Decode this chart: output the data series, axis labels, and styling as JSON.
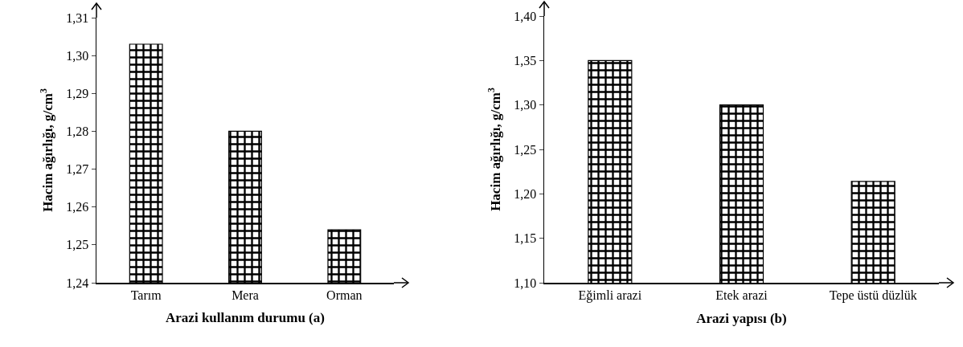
{
  "chart_data": [
    {
      "type": "bar",
      "categories": [
        "Tarım",
        "Mera",
        "Orman"
      ],
      "values": [
        1.303,
        1.28,
        1.254
      ],
      "color": "#000000",
      "xlabel": "Arazi kullanım durumu (a)",
      "ylabel": "Hacim ağırlığı, g/cm$^{3}$",
      "ylim": [
        1.24,
        1.31
      ],
      "yticks": [
        {
          "value": 1.24,
          "label": "1,24"
        },
        {
          "value": 1.25,
          "label": "1,25"
        },
        {
          "value": 1.26,
          "label": "1,26"
        },
        {
          "value": 1.27,
          "label": "1,27"
        },
        {
          "value": 1.28,
          "label": "1,28"
        },
        {
          "value": 1.29,
          "label": "1,29"
        },
        {
          "value": 1.3,
          "label": "1,30"
        },
        {
          "value": 1.31,
          "label": "1,31"
        }
      ],
      "grid": false,
      "legend": false
    },
    {
      "type": "bar",
      "categories": [
        "Eğimli arazi",
        "Etek arazi",
        "Tepe üstü düzlük"
      ],
      "values": [
        1.35,
        1.3,
        1.214
      ],
      "color": "#000000",
      "xlabel": "Arazi yapısı (b)",
      "ylabel": "Hacim ağırlığı, g/cm$^{3}$",
      "ylim": [
        1.1,
        1.4
      ],
      "yticks": [
        {
          "value": 1.1,
          "label": "1,10"
        },
        {
          "value": 1.15,
          "label": "1,15"
        },
        {
          "value": 1.2,
          "label": "1,20"
        },
        {
          "value": 1.25,
          "label": "1,25"
        },
        {
          "value": 1.3,
          "label": "1,30"
        },
        {
          "value": 1.35,
          "label": "1,35"
        },
        {
          "value": 1.4,
          "label": "1,40"
        }
      ],
      "grid": false,
      "legend": false
    }
  ]
}
